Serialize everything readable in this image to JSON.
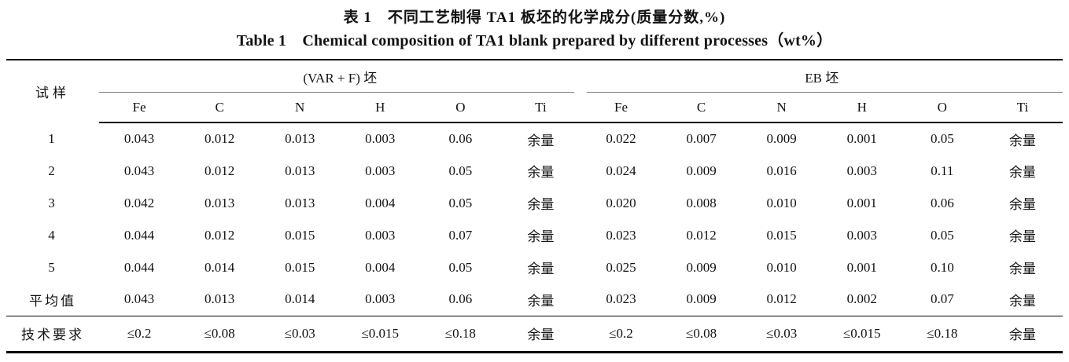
{
  "titles": {
    "zh": "表 1　不同工艺制得 TA1 板坯的化学成分(质量分数,%)",
    "en": "Table 1　Chemical composition of TA1 blank prepared by different processes（wt%）"
  },
  "table": {
    "sample_header": "试样",
    "groups": [
      {
        "label": "(VAR + F) 坯",
        "columns": [
          "Fe",
          "C",
          "N",
          "H",
          "O",
          "Ti"
        ]
      },
      {
        "label": "EB 坯",
        "columns": [
          "Fe",
          "C",
          "N",
          "H",
          "O",
          "Ti"
        ]
      }
    ],
    "rows": [
      {
        "label": "1",
        "values": [
          "0.043",
          "0.012",
          "0.013",
          "0.003",
          "0.06",
          "余量",
          "0.022",
          "0.007",
          "0.009",
          "0.001",
          "0.05",
          "余量"
        ]
      },
      {
        "label": "2",
        "values": [
          "0.043",
          "0.012",
          "0.013",
          "0.003",
          "0.05",
          "余量",
          "0.024",
          "0.009",
          "0.016",
          "0.003",
          "0.11",
          "余量"
        ]
      },
      {
        "label": "3",
        "values": [
          "0.042",
          "0.013",
          "0.013",
          "0.004",
          "0.05",
          "余量",
          "0.020",
          "0.008",
          "0.010",
          "0.001",
          "0.06",
          "余量"
        ]
      },
      {
        "label": "4",
        "values": [
          "0.044",
          "0.012",
          "0.015",
          "0.003",
          "0.07",
          "余量",
          "0.023",
          "0.012",
          "0.015",
          "0.003",
          "0.05",
          "余量"
        ]
      },
      {
        "label": "5",
        "values": [
          "0.044",
          "0.014",
          "0.015",
          "0.004",
          "0.05",
          "余量",
          "0.025",
          "0.009",
          "0.010",
          "0.001",
          "0.10",
          "余量"
        ]
      },
      {
        "label": "平均值",
        "values": [
          "0.043",
          "0.013",
          "0.014",
          "0.003",
          "0.06",
          "余量",
          "0.023",
          "0.009",
          "0.012",
          "0.002",
          "0.07",
          "余量"
        ]
      }
    ],
    "tech_row": {
      "label": "技术要求",
      "values": [
        "≤0.2",
        "≤0.08",
        "≤0.03",
        "≤0.015",
        "≤0.18",
        "余量",
        "≤0.2",
        "≤0.08",
        "≤0.03",
        "≤0.015",
        "≤0.18",
        "余量"
      ]
    }
  }
}
